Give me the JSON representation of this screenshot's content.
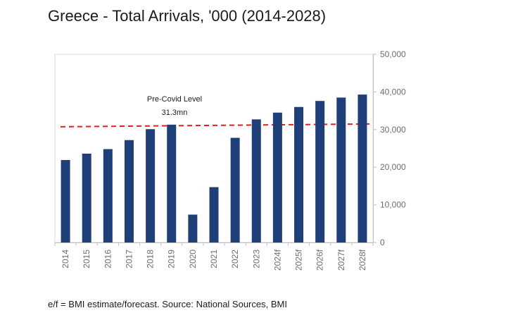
{
  "title": "Greece - Total Arrivals, '000 (2014-2028)",
  "footnote": "e/f = BMI estimate/forecast. Source: National Sources, BMI",
  "chart_data": {
    "type": "bar",
    "title": "Greece - Total Arrivals, '000 (2014-2028)",
    "xlabel": "",
    "ylabel": "",
    "categories": [
      "2014",
      "2015",
      "2016",
      "2017",
      "2018",
      "2019",
      "2020",
      "2021",
      "2022",
      "2023",
      "2024f",
      "2025f",
      "2026f",
      "2027f",
      "2028f"
    ],
    "values": [
      21900,
      23600,
      24800,
      27200,
      30100,
      31300,
      7400,
      14700,
      27800,
      32700,
      34500,
      36000,
      37600,
      38500,
      39300
    ],
    "ylim": [
      0,
      50000
    ],
    "yticks": [
      0,
      10000,
      20000,
      30000,
      40000,
      50000
    ],
    "ytick_labels": [
      "0",
      "10,000",
      "20,000",
      "30,000",
      "40,000",
      "50,000"
    ],
    "y_axis_side": "right",
    "grid": false,
    "legend": "none",
    "bar_color": "#1f3f78",
    "reference_line": {
      "value": 31300,
      "style": "dashed",
      "color": "#e0201b",
      "label_line1": "Pre-Covid Level",
      "label_line2": "31.3mn"
    }
  }
}
